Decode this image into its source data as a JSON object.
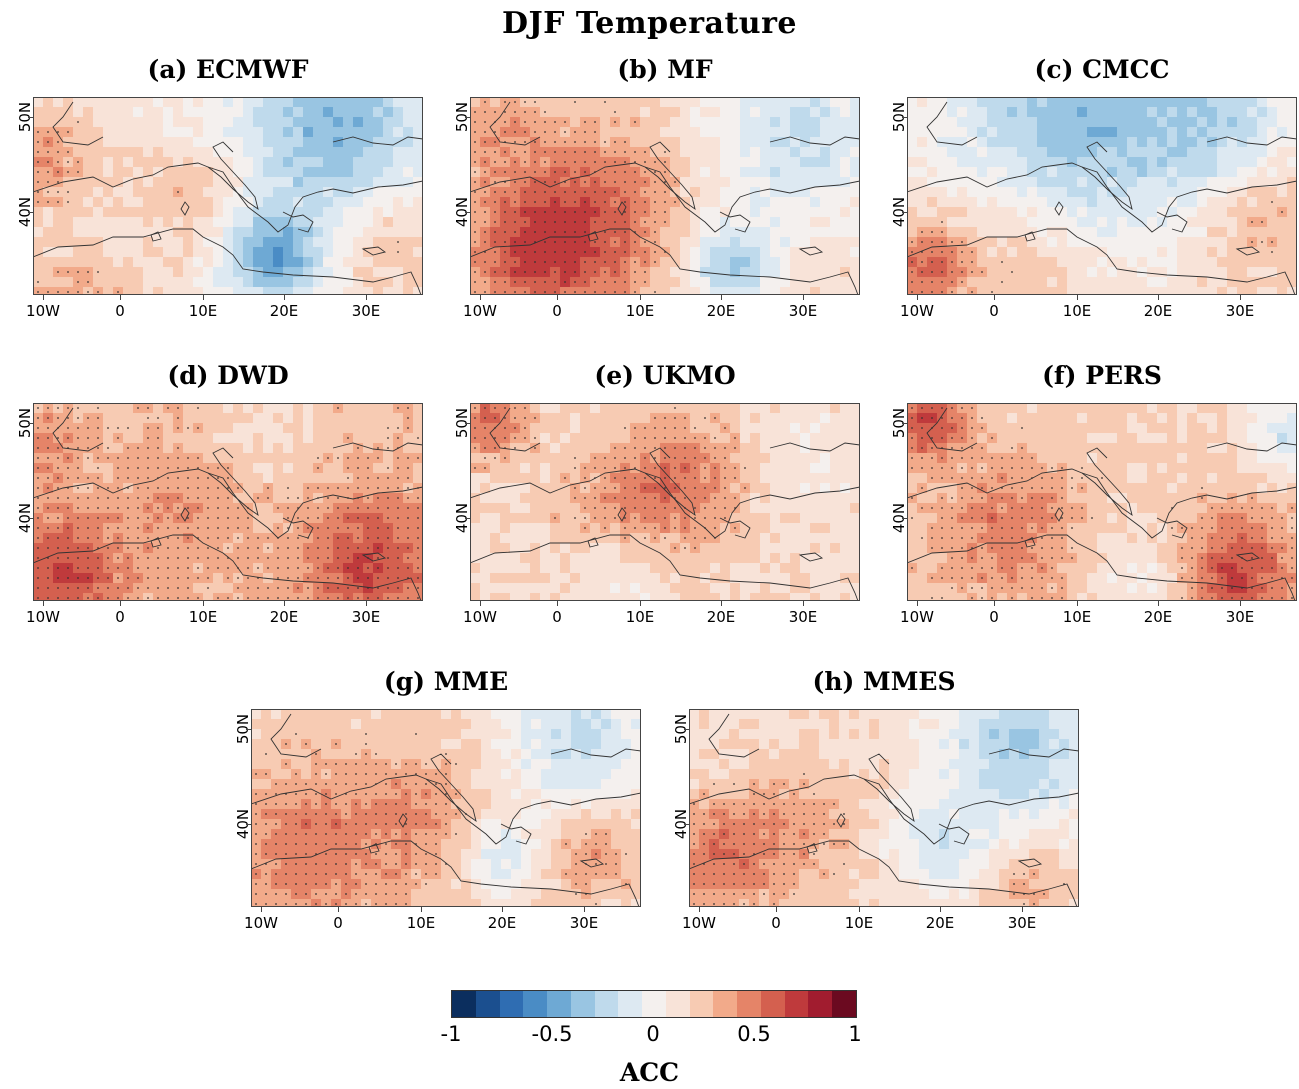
{
  "title": "DJF Temperature",
  "x_ticks": [
    "10W",
    "0",
    "10E",
    "20E",
    "30E"
  ],
  "y_ticks": [
    "50N",
    "40N"
  ],
  "panels": [
    {
      "id": "a",
      "label": "(a) ECMWF",
      "pattern": "ecmwf"
    },
    {
      "id": "b",
      "label": "(b) MF",
      "pattern": "mf"
    },
    {
      "id": "c",
      "label": "(c) CMCC",
      "pattern": "cmcc"
    },
    {
      "id": "d",
      "label": "(d) DWD",
      "pattern": "dwd"
    },
    {
      "id": "e",
      "label": "(e) UKMO",
      "pattern": "ukmo"
    },
    {
      "id": "f",
      "label": "(f) PERS",
      "pattern": "pers"
    },
    {
      "id": "g",
      "label": "(g) MME",
      "pattern": "mme"
    },
    {
      "id": "h",
      "label": "(h) MMES",
      "pattern": "mmes"
    }
  ],
  "colorbar": {
    "label": "ACC",
    "tick_labels": [
      "-1",
      "-0.5",
      "0",
      "0.5",
      "1"
    ],
    "colors": [
      "#0b2e5e",
      "#1b4f8f",
      "#2f6db2",
      "#4a8cc5",
      "#6ea9d4",
      "#99c5e2",
      "#bfdaec",
      "#dde9f2",
      "#f4f0ee",
      "#f8e3d8",
      "#f7cbb3",
      "#f2aa8a",
      "#e58468",
      "#d4604f",
      "#bf3a3c",
      "#a11c2f",
      "#6b0a20"
    ]
  }
}
